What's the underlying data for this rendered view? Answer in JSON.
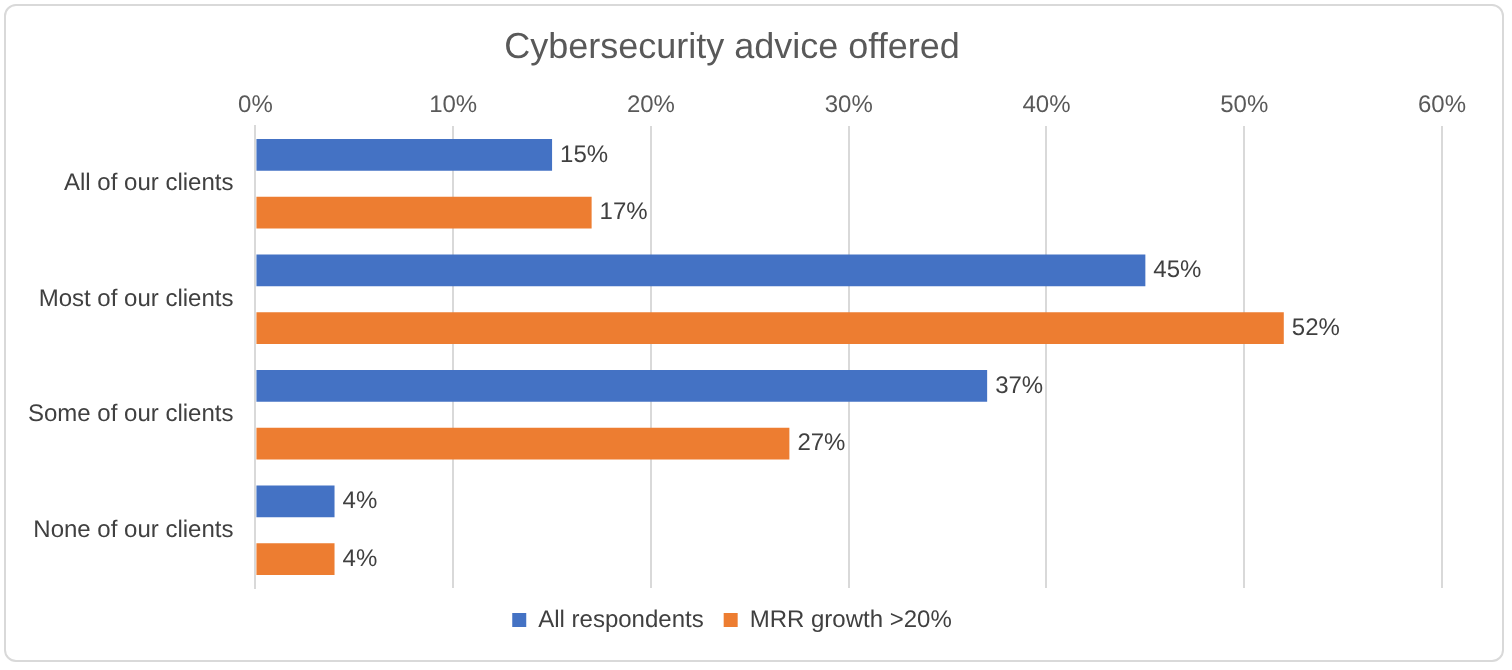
{
  "chart_data": {
    "type": "bar",
    "orientation": "horizontal",
    "title": "Cybersecurity advice offered",
    "categories": [
      "All of our clients",
      "Most of our clients",
      "Some of our clients",
      "None of our clients"
    ],
    "series": [
      {
        "name": "All respondents",
        "color": "#4472c4",
        "values": [
          15,
          45,
          37,
          4
        ],
        "value_labels": [
          "15%",
          "45%",
          "37%",
          "4%"
        ]
      },
      {
        "name": "MRR growth >20%",
        "color": "#ed7d31",
        "values": [
          17,
          52,
          27,
          4
        ],
        "value_labels": [
          "17%",
          "52%",
          "27%",
          "4%"
        ]
      }
    ],
    "xlim": [
      0,
      60
    ],
    "xticks": [
      {
        "value": 0,
        "label": "0%"
      },
      {
        "value": 10,
        "label": "10%"
      },
      {
        "value": 20,
        "label": "20%"
      },
      {
        "value": 30,
        "label": "30%"
      },
      {
        "value": 40,
        "label": "40%"
      },
      {
        "value": 50,
        "label": "50%"
      },
      {
        "value": 60,
        "label": "60%"
      }
    ],
    "grid": "x",
    "legend": "bottom"
  }
}
